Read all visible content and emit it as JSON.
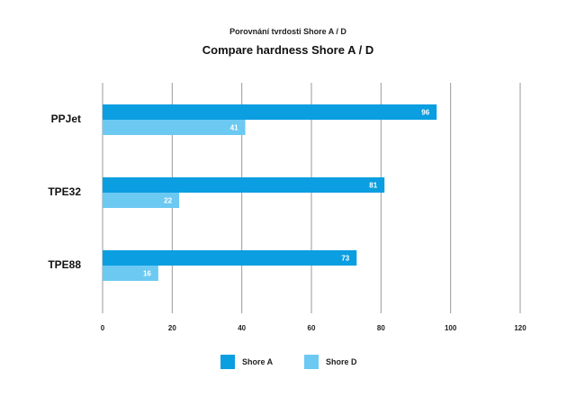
{
  "chart_data": {
    "type": "bar",
    "orientation": "horizontal",
    "subtitle": "Porovnání tvrdosti Shore A / D",
    "title": "Compare hardness Shore A / D",
    "categories": [
      "PPJet",
      "TPE32",
      "TPE88"
    ],
    "series": [
      {
        "name": "Shore A",
        "values": [
          96,
          81,
          73
        ],
        "color": "#0b9ee0"
      },
      {
        "name": "Shore D",
        "values": [
          41,
          22,
          16
        ],
        "color": "#6cc9f2"
      }
    ],
    "xlim": [
      0,
      120
    ],
    "xticks": [
      0,
      20,
      40,
      60,
      80,
      100,
      120
    ],
    "grid": true,
    "legend_position": "bottom"
  }
}
